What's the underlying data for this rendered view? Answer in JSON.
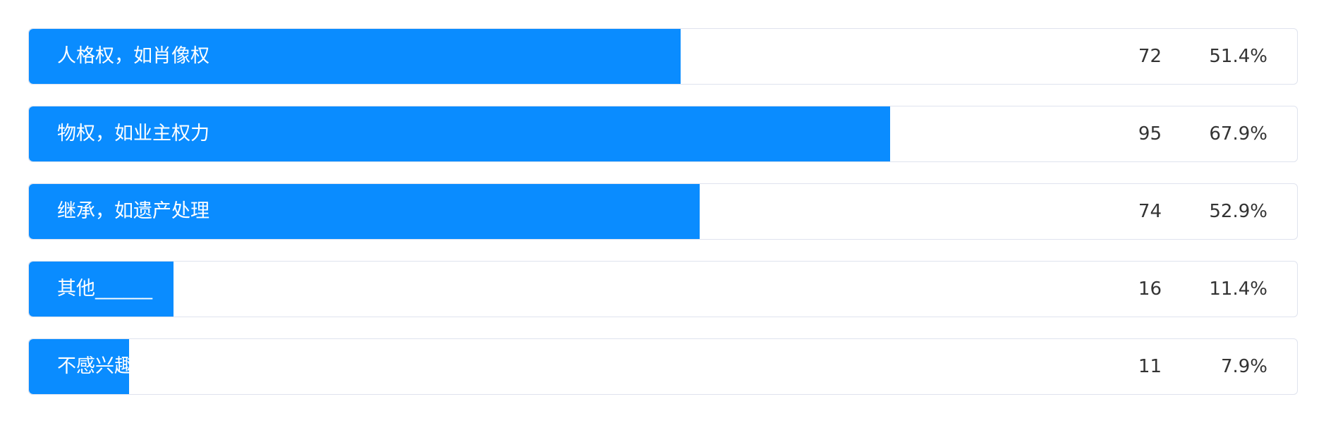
{
  "accent_color": "#0a8cff",
  "chart_data": {
    "type": "bar",
    "orientation": "horizontal",
    "categories": [
      "人格权，如肖像权",
      "物权，如业主权力",
      "继承，如遗产处理",
      "其他______",
      "不感兴趣"
    ],
    "counts": [
      72,
      95,
      74,
      16,
      11
    ],
    "percent_labels": [
      "51.4%",
      "67.9%",
      "52.9%",
      "11.4%",
      "7.9%"
    ],
    "values": [
      51.4,
      67.9,
      52.9,
      11.4,
      7.9
    ],
    "xlim": [
      0,
      100
    ],
    "grid": false,
    "legend": "none"
  }
}
